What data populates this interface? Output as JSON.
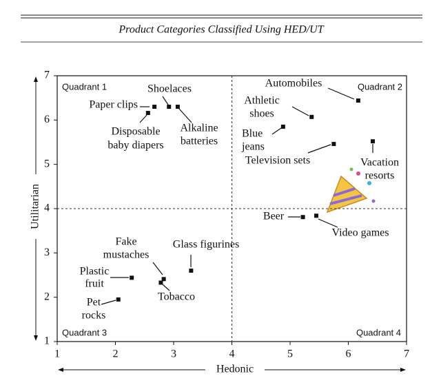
{
  "chart_data": {
    "type": "scatter",
    "title": "Product Categories Classified Using HED/UT",
    "x_label": "Hedonic",
    "y_label": "Utilitarian",
    "xlim": [
      1,
      7
    ],
    "ylim": [
      1,
      7
    ],
    "xticks": [
      1,
      2,
      3,
      4,
      5,
      6,
      7
    ],
    "yticks": [
      1,
      2,
      3,
      4,
      5,
      6,
      7
    ],
    "quadrant_divider": {
      "x": 4,
      "y": 4
    },
    "quadrant_labels": [
      "Quadrant 1",
      "Quadrant 2",
      "Quadrant 3",
      "Quadrant 4"
    ],
    "series": [
      {
        "color": "#111111",
        "x": [
          2.67,
          2.56,
          2.92,
          3.07,
          6.17,
          5.37,
          4.88,
          5.75,
          6.42,
          5.22,
          5.45,
          2.83,
          2.78,
          3.3,
          2.28,
          2.05
        ],
        "values": [
          6.3,
          6.16,
          6.3,
          6.3,
          6.44,
          6.07,
          5.85,
          5.46,
          5.52,
          3.81,
          3.84,
          2.41,
          2.33,
          2.6,
          2.44,
          1.95
        ],
        "labels": [
          [
            "Paper clips"
          ],
          [
            "Disposable",
            "baby diapers"
          ],
          [
            "Shoelaces"
          ],
          [
            "Alkaline",
            "batteries"
          ],
          [
            "Automobiles"
          ],
          [
            "Athletic",
            "shoes"
          ],
          [
            "Blue",
            "jeans"
          ],
          [
            "Television sets"
          ],
          [
            "Vacation",
            "resorts"
          ],
          [
            "Beer"
          ],
          [
            "Video games"
          ],
          [
            "Fake",
            "mustaches"
          ],
          [
            "Tobacco"
          ],
          [
            "Glass figurines"
          ],
          [
            "Plastic",
            "fruit"
          ],
          [
            "Pet",
            "rocks"
          ]
        ]
      }
    ]
  }
}
